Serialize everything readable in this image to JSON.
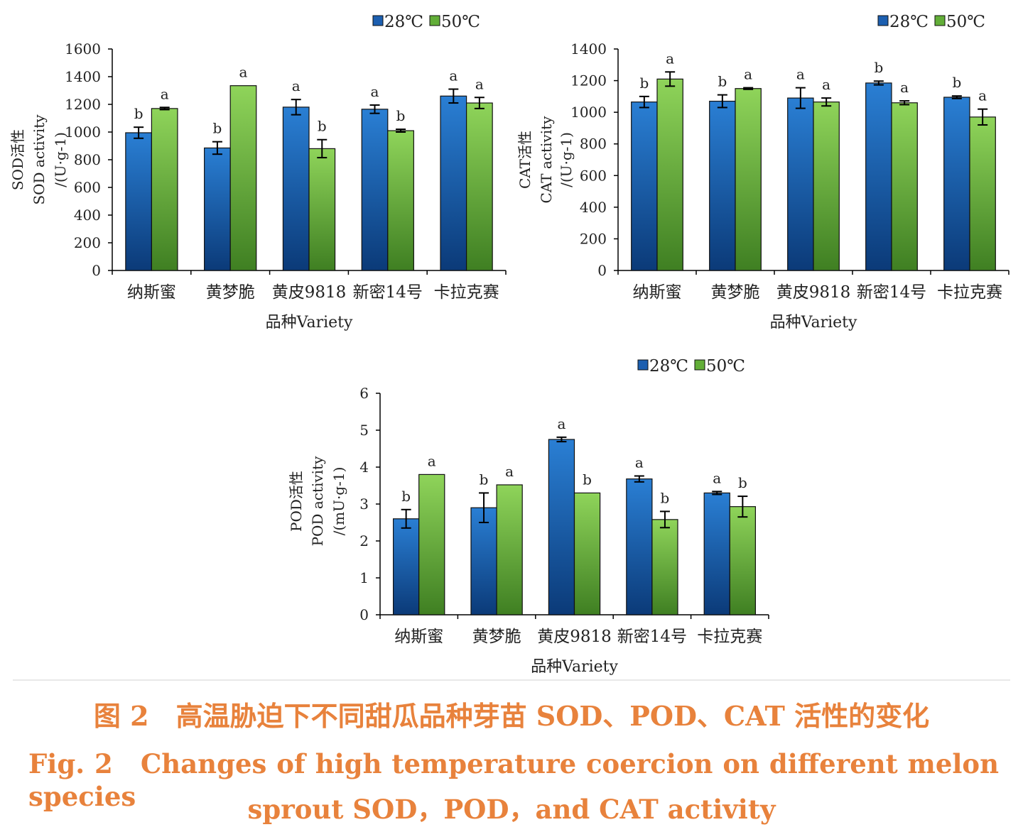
{
  "colors": {
    "c28": "#1c5fb0",
    "c50": "#62ae38",
    "caption": "#e8823c"
  },
  "legend": {
    "s28": "28℃",
    "s50": "50℃"
  },
  "x_label": "品种Variety",
  "chart_data": [
    {
      "type": "bar",
      "categories": [
        "纳斯蜜",
        "黄梦脆",
        "黄皮9818",
        "新密14号",
        "卡拉克赛"
      ],
      "ylabel": [
        "SOD活性",
        "SOD activity",
        "/(U·g-1)"
      ],
      "xlabel": "品种Variety",
      "ylim": [
        0,
        1600
      ],
      "yticks": [
        0,
        200,
        400,
        600,
        800,
        1000,
        1200,
        1400,
        1600
      ],
      "series": [
        {
          "name": "28℃",
          "values": [
            995,
            885,
            1180,
            1165,
            1260
          ],
          "errors": [
            40,
            45,
            55,
            30,
            50
          ],
          "letters": [
            "b",
            "b",
            "a",
            "a",
            "a"
          ]
        },
        {
          "name": "50℃",
          "values": [
            1170,
            1335,
            880,
            1010,
            1210
          ],
          "errors": [
            8,
            0,
            65,
            10,
            40
          ],
          "letters": [
            "a",
            "a",
            "b",
            "b",
            "a"
          ]
        }
      ]
    },
    {
      "type": "bar",
      "categories": [
        "纳斯蜜",
        "黄梦脆",
        "黄皮9818",
        "新密14号",
        "卡拉克赛"
      ],
      "ylabel": [
        "CAT活性",
        "CAT activity",
        "/(U·g-1)"
      ],
      "xlabel": "品种Variety",
      "ylim": [
        0,
        1400
      ],
      "yticks": [
        0,
        200,
        400,
        600,
        800,
        1000,
        1200,
        1400
      ],
      "series": [
        {
          "name": "28℃",
          "values": [
            1065,
            1070,
            1090,
            1185,
            1095
          ],
          "errors": [
            35,
            40,
            65,
            12,
            8
          ],
          "letters": [
            "b",
            "b",
            "a",
            "b",
            "b"
          ]
        },
        {
          "name": "50℃",
          "values": [
            1210,
            1150,
            1065,
            1060,
            970
          ],
          "errors": [
            45,
            5,
            25,
            12,
            50
          ],
          "letters": [
            "a",
            "a",
            "a",
            "a",
            "a"
          ]
        }
      ]
    },
    {
      "type": "bar",
      "categories": [
        "纳斯蜜",
        "黄梦脆",
        "黄皮9818",
        "新密14号",
        "卡拉克赛"
      ],
      "ylabel": [
        "POD活性",
        "POD activity",
        "/(mU·g-1)"
      ],
      "xlabel": "品种Variety",
      "ylim": [
        0,
        6
      ],
      "yticks": [
        0,
        1,
        2,
        3,
        4,
        5,
        6
      ],
      "series": [
        {
          "name": "28℃",
          "values": [
            2.6,
            2.9,
            4.75,
            3.68,
            3.3
          ],
          "errors": [
            0.25,
            0.4,
            0.06,
            0.08,
            0.04
          ],
          "letters": [
            "b",
            "b",
            "a",
            "a",
            "a"
          ]
        },
        {
          "name": "50℃",
          "values": [
            3.8,
            3.52,
            3.3,
            2.58,
            2.93
          ],
          "errors": [
            0,
            0,
            0,
            0.22,
            0.28
          ],
          "letters": [
            "a",
            "a",
            "b",
            "b",
            "b"
          ]
        }
      ]
    }
  ],
  "caption": {
    "cn": "图 2　高温胁迫下不同甜瓜品种芽苗 SOD、POD、CAT 活性的变化",
    "en1": "Fig. 2　Changes of high temperature coercion on different melon species",
    "en2": "sprout SOD，POD，and CAT activity"
  }
}
